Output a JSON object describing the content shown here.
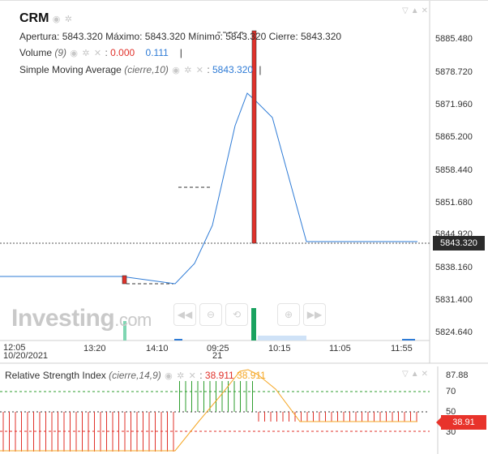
{
  "symbol": "CRM",
  "ohlc": {
    "open_label": "Apertura:",
    "open": "5843.320",
    "high_label": "Máximo:",
    "high": "5843.320",
    "low_label": "Mínimo:",
    "low": "5843.320",
    "close_label": "Cierre:",
    "close": "5843.320"
  },
  "volume": {
    "label": "Volume",
    "param": "(9)",
    "value1": "0.000",
    "value2": "0.111"
  },
  "sma": {
    "label": "Simple Moving Average",
    "param": "(cierre,10)",
    "value": "5843.320"
  },
  "price_axis": [
    "5885.480",
    "5878.720",
    "5871.960",
    "5865.200",
    "5858.440",
    "5851.680",
    "5844.920",
    "5838.160",
    "5831.400",
    "5824.640"
  ],
  "current_price": "5843.320",
  "time_axis": [
    "12:05",
    "13:20",
    "14:10",
    "09:25",
    "10:15",
    "11:05",
    "11:55"
  ],
  "date_labels": {
    "left": "10/20/2021",
    "center": "21"
  },
  "watermark": {
    "brand": "Investing",
    "suffix": ".com"
  },
  "rsi": {
    "label": "Relative Strength Index",
    "param": "(cierre,14,9)",
    "value1": "38.911",
    "value2": "38.911",
    "axis": [
      "87.88",
      "70",
      "50",
      "30"
    ],
    "current": "38.91"
  },
  "colors": {
    "up": "#1aa260",
    "down": "#e0312a",
    "sma": "#2e7bd6",
    "rsi": "#f5a623",
    "level_upper": "#2e9e2e",
    "level_lower": "#e0312a"
  },
  "icons": {
    "visibility": "eye-icon",
    "settings": "gear-icon",
    "close": "close-icon",
    "nav": [
      "rewind-icon",
      "zoom-out-icon",
      "reset-icon",
      "zoom-in-icon",
      "forward-icon"
    ]
  },
  "chart_data": {
    "type": "line",
    "title": "CRM",
    "series": [
      {
        "name": "Simple Moving Average",
        "x": [
          "12:05",
          "13:20",
          "14:10",
          "09:25",
          "10:15",
          "11:05",
          "11:55"
        ],
        "values": [
          5839.0,
          5839.0,
          5837.9,
          5846.0,
          5873.0,
          5843.3,
          5843.3
        ]
      }
    ],
    "candles": [
      {
        "x": "13:20",
        "open": 5837.9,
        "close": 5838.9,
        "color": "down"
      },
      {
        "x": "09:25",
        "open": 5843.32,
        "close": 5893.0,
        "color": "down"
      }
    ],
    "ylim": [
      5821.0,
      5891.0
    ]
  }
}
